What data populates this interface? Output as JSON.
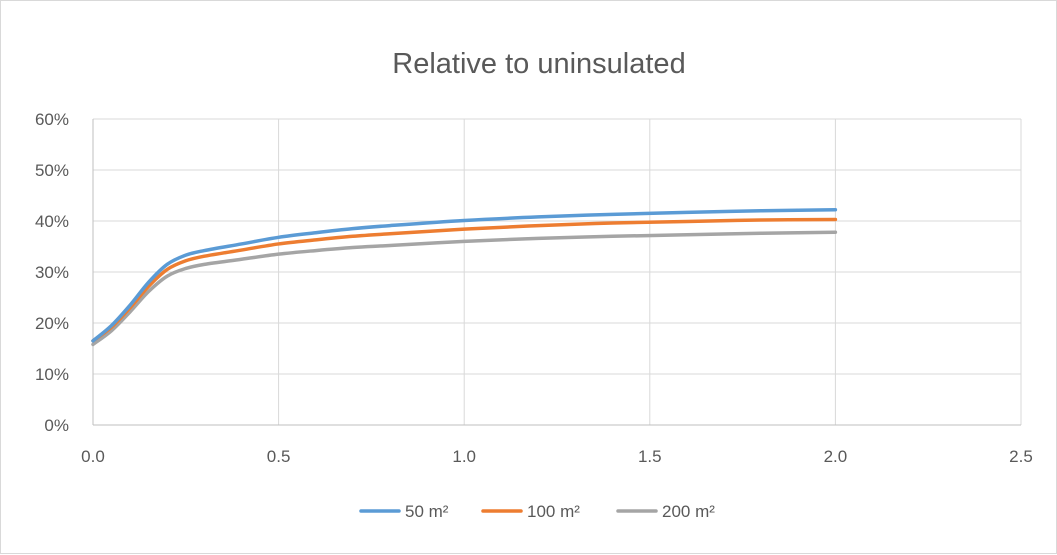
{
  "chart_data": {
    "type": "line",
    "title": "Relative to uninsulated",
    "xlabel": "",
    "ylabel": "",
    "xlim": [
      0,
      2.5
    ],
    "ylim": [
      0,
      0.6
    ],
    "x_ticks": [
      0,
      0.5,
      1.0,
      1.5,
      2.0,
      2.5
    ],
    "x_tick_labels": [
      "0.0",
      "0.5",
      "1.0",
      "1.5",
      "2.0",
      "2.5"
    ],
    "y_ticks": [
      0,
      0.1,
      0.2,
      0.3,
      0.4,
      0.5,
      0.6
    ],
    "y_tick_labels": [
      "0%",
      "10%",
      "20%",
      "30%",
      "40%",
      "50%",
      "60%"
    ],
    "grid": true,
    "legend_position": "bottom",
    "series": [
      {
        "name": "50 m²",
        "color": "#5b9bd5",
        "points": [
          [
            0,
            0.165
          ],
          [
            0.05,
            0.195
          ],
          [
            0.1,
            0.235
          ],
          [
            0.15,
            0.28
          ],
          [
            0.2,
            0.315
          ],
          [
            0.25,
            0.333
          ],
          [
            0.3,
            0.342
          ],
          [
            0.4,
            0.355
          ],
          [
            0.5,
            0.368
          ],
          [
            0.6,
            0.377
          ],
          [
            0.7,
            0.385
          ],
          [
            0.8,
            0.391
          ],
          [
            1.0,
            0.401
          ],
          [
            1.2,
            0.408
          ],
          [
            1.4,
            0.413
          ],
          [
            1.6,
            0.417
          ],
          [
            1.8,
            0.42
          ],
          [
            2.0,
            0.422
          ]
        ]
      },
      {
        "name": "100 m²",
        "color": "#ed7d31",
        "points": [
          [
            0,
            0.165
          ],
          [
            0.05,
            0.192
          ],
          [
            0.1,
            0.23
          ],
          [
            0.15,
            0.272
          ],
          [
            0.2,
            0.305
          ],
          [
            0.25,
            0.322
          ],
          [
            0.3,
            0.331
          ],
          [
            0.4,
            0.343
          ],
          [
            0.5,
            0.355
          ],
          [
            0.6,
            0.363
          ],
          [
            0.7,
            0.37
          ],
          [
            0.8,
            0.375
          ],
          [
            1.0,
            0.384
          ],
          [
            1.2,
            0.391
          ],
          [
            1.4,
            0.396
          ],
          [
            1.6,
            0.399
          ],
          [
            1.8,
            0.402
          ],
          [
            2.0,
            0.403
          ]
        ]
      },
      {
        "name": "200 m²",
        "color": "#a5a5a5",
        "points": [
          [
            0,
            0.158
          ],
          [
            0.05,
            0.185
          ],
          [
            0.1,
            0.222
          ],
          [
            0.15,
            0.262
          ],
          [
            0.2,
            0.292
          ],
          [
            0.25,
            0.307
          ],
          [
            0.3,
            0.315
          ],
          [
            0.4,
            0.325
          ],
          [
            0.5,
            0.335
          ],
          [
            0.6,
            0.342
          ],
          [
            0.7,
            0.348
          ],
          [
            0.8,
            0.352
          ],
          [
            1.0,
            0.36
          ],
          [
            1.2,
            0.366
          ],
          [
            1.4,
            0.37
          ],
          [
            1.6,
            0.373
          ],
          [
            1.8,
            0.376
          ],
          [
            2.0,
            0.378
          ]
        ]
      }
    ]
  }
}
